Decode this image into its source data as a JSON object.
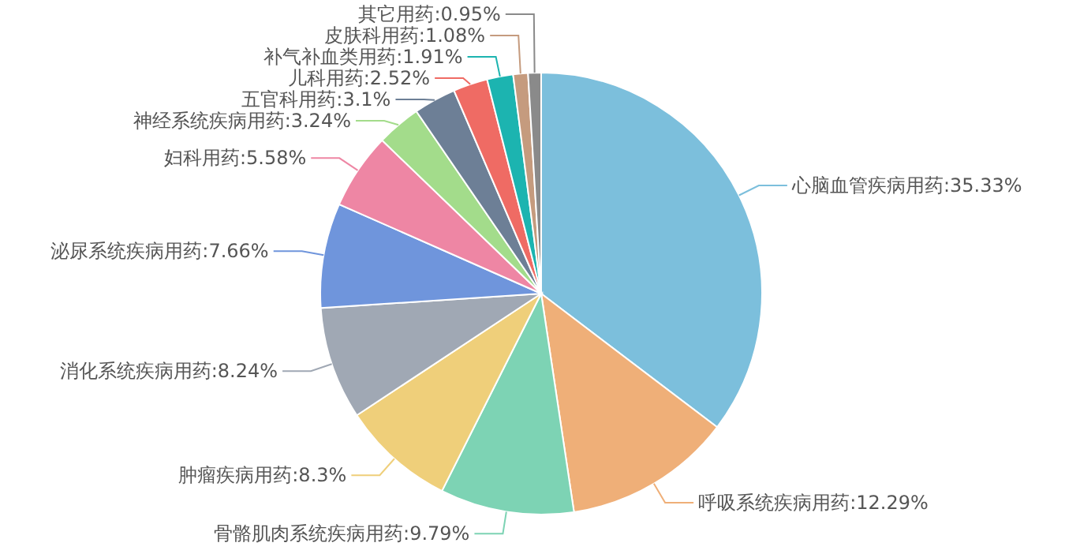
{
  "chart_data": {
    "type": "pie",
    "categories": [
      "心脑血管疾病用药",
      "呼吸系统疾病用药",
      "骨骼肌肉系统疾病用药",
      "肿瘤疾病用药",
      "消化系统疾病用药",
      "泌尿系统疾病用药",
      "妇科用药",
      "神经系统疾病用药",
      "五官科用药",
      "儿科用药",
      "补气补血类用药",
      "皮肤科用药",
      "其它用药"
    ],
    "values": [
      35.33,
      12.29,
      9.79,
      8.3,
      8.24,
      7.66,
      5.58,
      3.24,
      3.1,
      2.52,
      1.91,
      1.08,
      0.95
    ],
    "colors": [
      "#7cbfdc",
      "#efaf78",
      "#7dd3b4",
      "#efcf7a",
      "#a0a8b4",
      "#6f95dc",
      "#ee86a4",
      "#a3dc8b",
      "#6d7f96",
      "#ef6b64",
      "#1cb4b0",
      "#c59b7e",
      "#8a8a8a"
    ],
    "value_labels": [
      ":35.33%",
      ":12.29%",
      ":9.79%",
      ":8.3%",
      ":8.24%",
      ":7.66%",
      ":5.58%",
      ":3.24%",
      ":3.1%",
      ":2.52%",
      ":1.91%",
      ":1.08%",
      ":0.95%"
    ]
  }
}
